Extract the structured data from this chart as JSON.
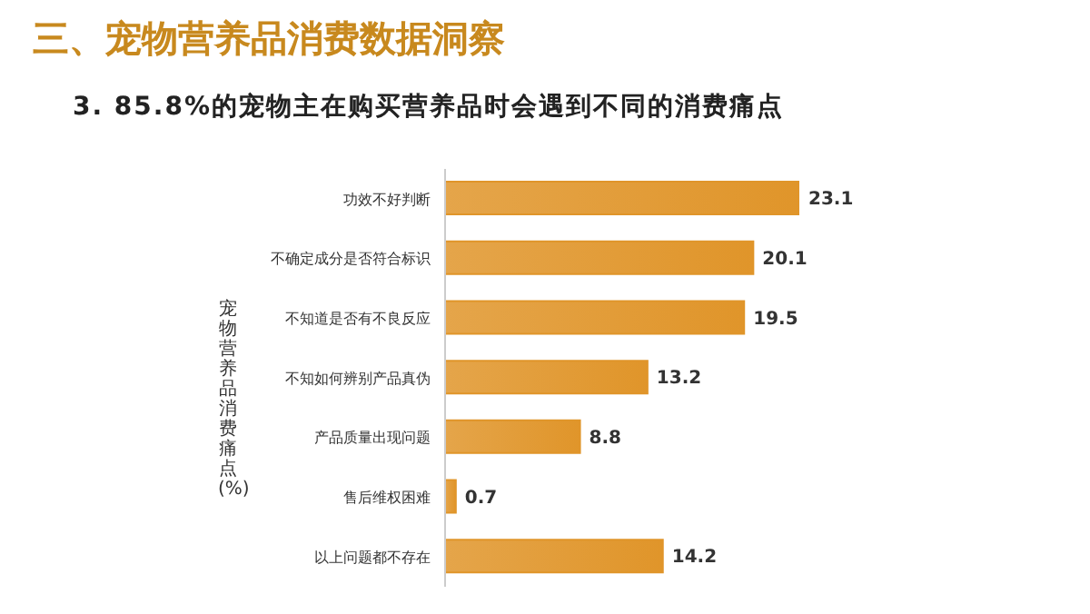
{
  "chart_data": {
    "type": "bar",
    "orientation": "horizontal",
    "title": "三、宠物营养品消费数据洞察",
    "subtitle": "3. 85.8%的宠物主在购买营养品时会遇到不同的消费痛点",
    "ylabel": "宠物营养品消费痛点 (%)",
    "categories": [
      "功效不好判断",
      "不确定成分是否符合标识",
      "不知道是否有不良反应",
      "不知如何辨别产品真伪",
      "产品质量出现问题",
      "售后维权困难",
      "以上问题都不存在"
    ],
    "values": [
      23.1,
      20.1,
      19.5,
      13.2,
      8.8,
      0.7,
      14.2
    ],
    "color": "#e0952a",
    "data_labels": true,
    "grid": false,
    "legend": false
  }
}
